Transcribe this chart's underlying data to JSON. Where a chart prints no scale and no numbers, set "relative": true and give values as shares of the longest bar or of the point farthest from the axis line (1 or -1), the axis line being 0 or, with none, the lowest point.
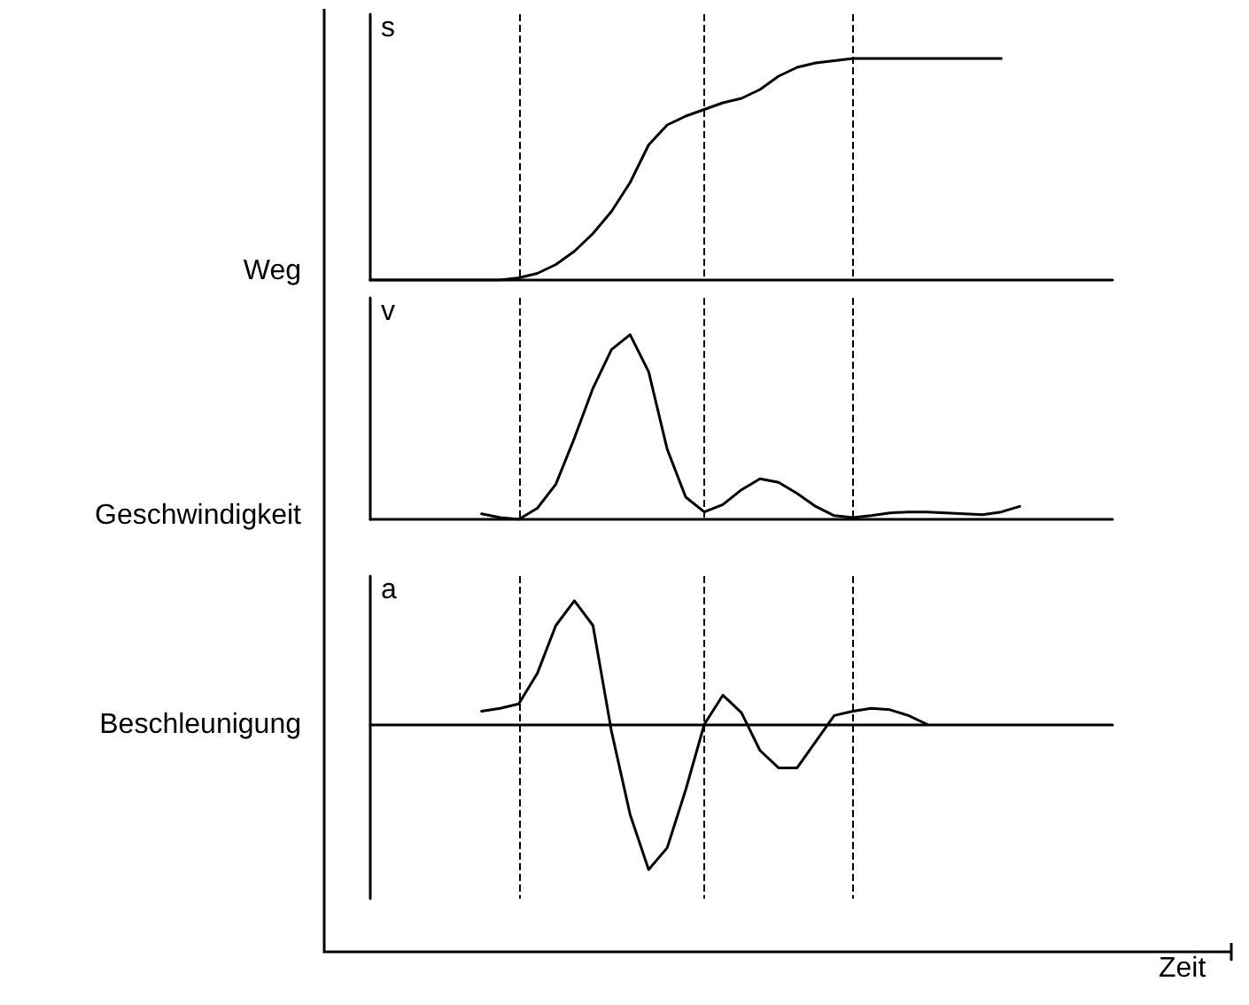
{
  "chart_data": [
    {
      "type": "line",
      "ylabel": "s",
      "annotations": [
        "Weg"
      ],
      "relative": true,
      "marker": "none",
      "line_style": "solid",
      "categories": [
        null,
        null,
        null,
        null,
        null,
        null,
        null,
        null,
        null,
        null,
        null,
        null,
        null,
        null,
        null,
        null,
        null,
        null,
        null,
        null,
        null,
        null,
        null,
        null,
        null,
        null,
        null,
        null,
        null,
        null,
        null,
        null,
        null,
        null,
        null,
        null,
        null,
        null,
        null,
        null,
        null
      ],
      "series": [
        {
          "color": "#000000",
          "values": [
            0,
            0,
            0,
            0,
            0,
            0,
            0,
            0,
            0.01,
            0.03,
            0.07,
            0.13,
            0.21,
            0.31,
            0.44,
            0.61,
            0.7,
            0.74,
            0.77,
            0.8,
            0.82,
            0.86,
            0.92,
            0.96,
            0.98,
            0.99,
            1,
            1,
            1,
            1,
            1,
            1,
            1,
            1,
            1,
            null,
            null,
            null,
            null,
            null,
            null
          ]
        }
      ],
      "grid": "x"
    },
    {
      "type": "line",
      "ylabel": "v",
      "annotations": [
        "Geschwindigkeit"
      ],
      "relative": true,
      "marker": "none",
      "line_style": "solid",
      "categories": [
        null,
        null,
        null,
        null,
        null,
        null,
        null,
        null,
        null,
        null,
        null,
        null,
        null,
        null,
        null,
        null,
        null,
        null,
        null,
        null,
        null,
        null,
        null,
        null,
        null,
        null,
        null,
        null,
        null,
        null,
        null,
        null,
        null,
        null,
        null,
        null,
        null,
        null,
        null,
        null,
        null
      ],
      "series": [
        {
          "color": "#000000",
          "values": [
            null,
            null,
            null,
            null,
            null,
            null,
            0.03,
            0.01,
            0,
            0.06,
            0.19,
            0.44,
            0.71,
            0.92,
            1,
            0.8,
            0.38,
            0.12,
            0.04,
            0.08,
            0.16,
            0.22,
            0.2,
            0.14,
            0.07,
            0.02,
            0.01,
            0.02,
            0.035,
            0.04,
            0.04,
            0.035,
            0.03,
            0.025,
            0.04,
            0.07,
            null,
            null,
            null,
            null,
            null
          ]
        }
      ],
      "grid": "x"
    },
    {
      "type": "line",
      "ylabel": "a",
      "xlabel": "Zeit",
      "annotations": [
        "Beschleunigung"
      ],
      "relative": true,
      "marker": "none",
      "line_style": "solid",
      "categories": [
        null,
        null,
        null,
        null,
        null,
        null,
        null,
        null,
        null,
        null,
        null,
        null,
        null,
        null,
        null,
        null,
        null,
        null,
        null,
        null,
        null,
        null,
        null,
        null,
        null,
        null,
        null,
        null,
        null,
        null,
        null,
        null,
        null,
        null,
        null,
        null,
        null,
        null,
        null,
        null,
        null
      ],
      "series": [
        {
          "color": "#000000",
          "values": [
            null,
            null,
            null,
            null,
            null,
            null,
            0.09,
            0.11,
            0.14,
            0.35,
            0.68,
            0.85,
            0.68,
            -0.05,
            -0.62,
            -1,
            -0.85,
            -0.45,
            0,
            0.2,
            0.08,
            -0.18,
            -0.3,
            -0.3,
            -0.12,
            0.06,
            0.09,
            0.11,
            0.1,
            0.06,
            0,
            null,
            null,
            null,
            null,
            null,
            null,
            null,
            null,
            null,
            null
          ]
        }
      ],
      "grid": "x"
    }
  ]
}
